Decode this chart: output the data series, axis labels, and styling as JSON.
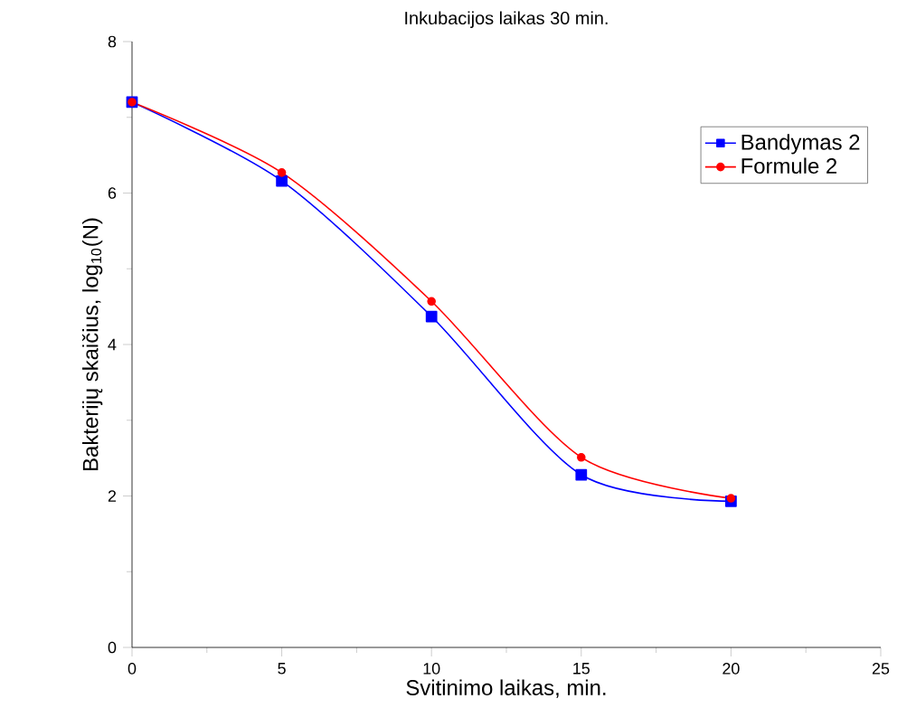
{
  "chart_data": {
    "type": "line",
    "title": "Inkubacijos laikas 30 min.",
    "xlabel": "Svitinimo laikas, min.",
    "ylabel": "Bakterijų skaičius, log$_{10}$(N)",
    "x": [
      0,
      5,
      10,
      15,
      20
    ],
    "series": [
      {
        "name": "Bandymas 2",
        "color": "#0000ff",
        "marker": "square",
        "values": [
          7.2,
          6.16,
          4.37,
          2.28,
          1.93
        ]
      },
      {
        "name": "Formule 2",
        "color": "#ff0000",
        "marker": "circle",
        "values": [
          7.2,
          6.27,
          4.57,
          2.51,
          1.97
        ]
      }
    ],
    "xlim": [
      0,
      25
    ],
    "xticks": [
      0,
      5,
      10,
      15,
      20,
      25
    ],
    "ylim": [
      0,
      8
    ],
    "yticks": [
      0,
      2,
      4,
      6,
      8
    ],
    "legend": "top right",
    "grid": false,
    "line_style": "solid"
  }
}
